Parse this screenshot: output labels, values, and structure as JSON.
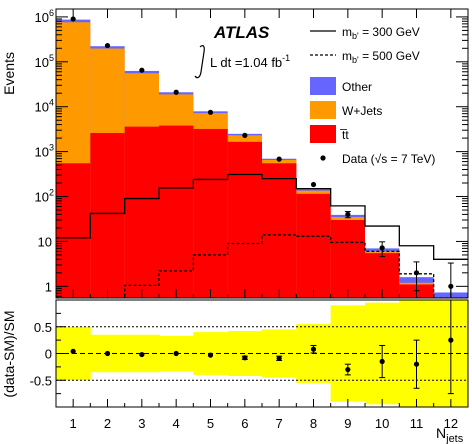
{
  "chart_data": [
    {
      "type": "bar",
      "subtype": "stacked-histogram-log",
      "title": "",
      "experiment_label": "ATLAS",
      "luminosity_label": "L dt =1.04 fb",
      "luminosity_sup": "-1",
      "ylabel": "Events",
      "xlabel_main": "N",
      "xlabel_sub": "jets",
      "yscale": "log",
      "ylim": [
        0.55,
        1500000
      ],
      "xlim": [
        0.5,
        12.5
      ],
      "x": [
        1,
        2,
        3,
        4,
        5,
        6,
        7,
        8,
        9,
        10,
        11,
        12
      ],
      "x_tick_labels": [
        "1",
        "2",
        "3",
        "4",
        "5",
        "6",
        "7",
        "8",
        "9",
        "10",
        "11",
        "12"
      ],
      "y_ticks": [
        {
          "value": 1,
          "base": "1",
          "exp": ""
        },
        {
          "value": 10,
          "base": "10",
          "exp": ""
        },
        {
          "value": 100,
          "base": "10",
          "exp": "2"
        },
        {
          "value": 1000,
          "base": "10",
          "exp": "3"
        },
        {
          "value": 10000,
          "base": "10",
          "exp": "4"
        },
        {
          "value": 100000,
          "base": "10",
          "exp": "5"
        },
        {
          "value": 1000000,
          "base": "10",
          "exp": "6"
        }
      ],
      "stack": [
        {
          "name": "tt",
          "legend": "t̅t",
          "color": "#ff0000",
          "values": [
            550,
            2600,
            3600,
            3800,
            3200,
            1650,
            550,
            115,
            30,
            5.5,
            1.1,
            0.5
          ]
        },
        {
          "name": "W+Jets",
          "color": "#ff9900",
          "values": [
            760000,
            195000,
            52000,
            15000,
            4000,
            660,
            100,
            20,
            5,
            0.6,
            0.1,
            0.03
          ]
        },
        {
          "name": "Other",
          "color": "#6666ff",
          "values": [
            110000,
            25000,
            7000,
            2200,
            700,
            180,
            45,
            12,
            4,
            0.9,
            0.4,
            0.2
          ]
        }
      ],
      "signals": [
        {
          "name": "m_b' = 300 GeV",
          "legend_main": "m",
          "legend_sub": "b'",
          "legend_rest": " = 300 GeV",
          "style": "solid",
          "values": [
            12,
            42,
            90,
            155,
            240,
            310,
            250,
            150,
            62,
            22,
            8,
            4
          ]
        },
        {
          "name": "m_b' = 500 GeV",
          "legend_main": "m",
          "legend_sub": "b'",
          "legend_rest": " = 500 GeV",
          "style": "dashed",
          "values": [
            0.5,
            0.5,
            1.05,
            2.2,
            5,
            9,
            14,
            13,
            9.5,
            6,
            1.9,
            0.5
          ]
        }
      ],
      "data_series": {
        "name": "Data",
        "legend": "Data (√s = 7 TeV)",
        "values": [
          900000,
          230000,
          65000,
          21000,
          7500,
          2300,
          680,
          185,
          40,
          7.2,
          2,
          1
        ],
        "errors_low": [
          900,
          480,
          250,
          145,
          86,
          48,
          26,
          13.6,
          6.3,
          2.6,
          1.2,
          0.8
        ],
        "errors_high": [
          900,
          480,
          250,
          145,
          86,
          48,
          26,
          13.6,
          6.3,
          2.6,
          1.5,
          2.3
        ]
      }
    },
    {
      "type": "scatter",
      "subtype": "ratio",
      "ylabel": "(data-SM)/SM",
      "ylim": [
        -1,
        1
      ],
      "y_ticks": [
        {
          "value": -0.5,
          "label": "-0.5"
        },
        {
          "value": 0,
          "label": "0"
        },
        {
          "value": 0.5,
          "label": "0.5"
        }
      ],
      "reference_lines": [
        -0.5,
        0,
        0.5
      ],
      "band_color": "#ffff00",
      "band_halfwidth": [
        0.5,
        0.35,
        0.35,
        0.33,
        0.4,
        0.42,
        0.45,
        0.55,
        0.9,
        0.95,
        1,
        1
      ],
      "x": [
        1,
        2,
        3,
        4,
        5,
        6,
        7,
        8,
        9,
        10,
        11,
        12
      ],
      "values": [
        0.04,
        0.0,
        -0.02,
        0.0,
        -0.03,
        -0.08,
        -0.09,
        0.08,
        -0.3,
        -0.15,
        -0.2,
        0.25
      ],
      "errors": [
        0.02,
        0.02,
        0.02,
        0.02,
        0.02,
        0.03,
        0.04,
        0.07,
        0.1,
        0.3,
        0.45,
        1
      ]
    }
  ]
}
